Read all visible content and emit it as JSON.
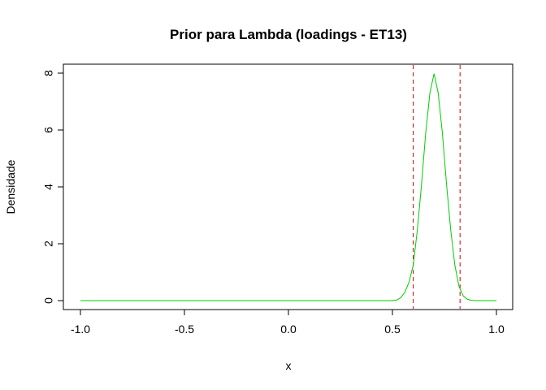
{
  "chart_data": {
    "type": "line",
    "title": "Prior para Lambda (loadings - ET13)",
    "xlabel": "x",
    "ylabel": "Densidade",
    "xlim": [
      -1.0,
      1.0
    ],
    "ylim": [
      0,
      8
    ],
    "x_ticks": [
      -1.0,
      -0.5,
      0.0,
      0.5,
      1.0
    ],
    "x_tick_labels": [
      "-1.0",
      "-0.5",
      "0.0",
      "0.5",
      "1.0"
    ],
    "y_ticks": [
      0,
      2,
      4,
      6,
      8
    ],
    "y_tick_labels": [
      "0",
      "2",
      "4",
      "6",
      "8"
    ],
    "grid": false,
    "legend": "none",
    "series": [
      {
        "color": "#00cc00",
        "x": [
          -1.0,
          -0.9,
          -0.8,
          -0.7,
          -0.6,
          -0.5,
          -0.4,
          -0.3,
          -0.2,
          -0.1,
          0.0,
          0.1,
          0.2,
          0.3,
          0.4,
          0.5,
          0.52,
          0.54,
          0.56,
          0.58,
          0.6,
          0.62,
          0.64,
          0.66,
          0.68,
          0.7,
          0.72,
          0.74,
          0.76,
          0.78,
          0.8,
          0.82,
          0.84,
          0.86,
          0.88,
          0.9,
          0.95,
          1.0
        ],
        "y": [
          0,
          0,
          0,
          0,
          0,
          0,
          0,
          0,
          0,
          0,
          0,
          0,
          0,
          0,
          0,
          0.0,
          0.02,
          0.1,
          0.3,
          0.65,
          1.25,
          2.5,
          4.1,
          5.9,
          7.3,
          7.98,
          7.3,
          5.9,
          4.1,
          2.5,
          1.25,
          0.5,
          0.17,
          0.05,
          0.01,
          0.0,
          0.0,
          0.0
        ]
      }
    ],
    "vlines": [
      {
        "x": 0.6,
        "color": "#cc0000",
        "style": "dashed"
      },
      {
        "x": 0.825,
        "color": "#cc0000",
        "style": "dashed"
      }
    ]
  }
}
